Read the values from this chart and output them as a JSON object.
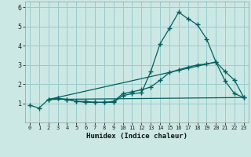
{
  "xlabel": "Humidex (Indice chaleur)",
  "bg_color": "#cce8e4",
  "line_color": "#006060",
  "grid_color": "#99cccc",
  "xlim": [
    -0.5,
    23.5
  ],
  "ylim": [
    0,
    6.3
  ],
  "xticks": [
    0,
    1,
    2,
    3,
    4,
    5,
    6,
    7,
    8,
    9,
    10,
    11,
    12,
    13,
    14,
    15,
    16,
    17,
    18,
    19,
    20,
    21,
    22,
    23
  ],
  "yticks": [
    1,
    2,
    3,
    4,
    5,
    6
  ],
  "line1_x": [
    0,
    1,
    2,
    3,
    4,
    5,
    6,
    7,
    8,
    9,
    10,
    11,
    12,
    13,
    14,
    15,
    16,
    17,
    18,
    19,
    20,
    21,
    22,
    23
  ],
  "line1_y": [
    0.9,
    0.75,
    1.2,
    1.25,
    1.2,
    1.1,
    1.05,
    1.05,
    1.05,
    1.05,
    1.4,
    1.5,
    1.55,
    2.65,
    4.1,
    4.9,
    5.75,
    5.4,
    5.1,
    4.35,
    3.15,
    2.15,
    1.5,
    1.3
  ],
  "line2_x": [
    2,
    3,
    4,
    5,
    6,
    7,
    8,
    9,
    10,
    11,
    12,
    13,
    14,
    15,
    16,
    17,
    18,
    19,
    20,
    21,
    22,
    23
  ],
  "line2_y": [
    1.2,
    1.25,
    1.2,
    1.1,
    1.1,
    1.05,
    1.05,
    1.1,
    1.5,
    1.6,
    1.7,
    1.85,
    2.2,
    2.6,
    2.75,
    2.88,
    3.0,
    3.05,
    3.15,
    2.65,
    2.2,
    1.3
  ],
  "line3_x": [
    2,
    23
  ],
  "line3_y": [
    1.2,
    1.3
  ],
  "line4_x": [
    2,
    20
  ],
  "line4_y": [
    1.2,
    3.15
  ]
}
